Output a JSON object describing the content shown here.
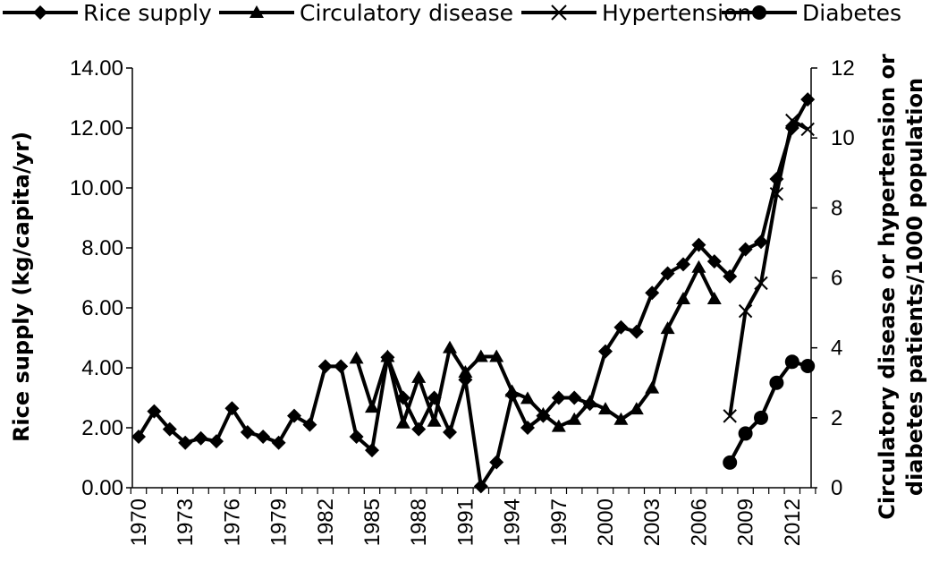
{
  "chart_data": {
    "type": "line",
    "title": "",
    "x": [
      1970,
      1971,
      1972,
      1973,
      1974,
      1975,
      1976,
      1977,
      1978,
      1979,
      1980,
      1981,
      1982,
      1983,
      1984,
      1985,
      1986,
      1987,
      1988,
      1989,
      1990,
      1991,
      1992,
      1993,
      1994,
      1995,
      1996,
      1997,
      1998,
      1999,
      2000,
      2001,
      2002,
      2003,
      2004,
      2005,
      2006,
      2007,
      2008,
      2009,
      2010,
      2011,
      2012,
      2013
    ],
    "xticks": [
      "1970",
      "1973",
      "1976",
      "1979",
      "1982",
      "1985",
      "1988",
      "1991",
      "1994",
      "1997",
      "2000",
      "2003",
      "2006",
      "2009",
      "2012"
    ],
    "ylabel_left": "Rice supply (kg/capita/yr)",
    "ylabel_right": [
      "Circulatory disease or hypertension or",
      "diabetes patients/1000 population"
    ],
    "ylim_left": [
      0,
      14
    ],
    "ylim_right": [
      0,
      12
    ],
    "yticks_left": [
      "0.00",
      "2.00",
      "4.00",
      "6.00",
      "8.00",
      "10.00",
      "12.00",
      "14.00"
    ],
    "yticks_right": [
      "0",
      "2",
      "4",
      "6",
      "8",
      "10",
      "12"
    ],
    "grid": false,
    "legend_position": "top",
    "series": [
      {
        "name": "Rice supply",
        "axis": "left",
        "marker": "diamond",
        "values": [
          1.7,
          2.55,
          1.95,
          1.5,
          1.65,
          1.55,
          2.65,
          1.85,
          1.7,
          1.5,
          2.4,
          2.1,
          4.05,
          4.05,
          1.7,
          1.25,
          4.35,
          3.0,
          1.95,
          3.0,
          1.85,
          3.6,
          0.05,
          0.85,
          3.1,
          2.0,
          2.4,
          3.0,
          3.0,
          2.8,
          4.55,
          5.35,
          5.2,
          6.5,
          7.15,
          7.45,
          8.1,
          7.55,
          7.05,
          7.95,
          8.2,
          10.3,
          12.0,
          12.95
        ]
      },
      {
        "name": "Circulatory disease",
        "axis": "right",
        "marker": "triangle",
        "values": [
          null,
          null,
          null,
          null,
          null,
          null,
          null,
          null,
          null,
          null,
          null,
          null,
          null,
          null,
          3.7,
          2.3,
          3.75,
          1.85,
          3.15,
          1.9,
          4.0,
          3.3,
          3.75,
          3.75,
          2.75,
          2.55,
          2.1,
          1.75,
          1.95,
          2.45,
          2.25,
          1.95,
          2.25,
          2.85,
          4.55,
          5.4,
          6.3,
          5.4,
          null,
          null,
          null,
          null,
          null,
          null
        ]
      },
      {
        "name": "Hypertension",
        "axis": "right",
        "marker": "x",
        "values": [
          null,
          null,
          null,
          null,
          null,
          null,
          null,
          null,
          null,
          null,
          null,
          null,
          null,
          null,
          null,
          null,
          null,
          null,
          null,
          null,
          null,
          null,
          null,
          null,
          null,
          null,
          null,
          null,
          null,
          null,
          null,
          null,
          null,
          null,
          null,
          null,
          null,
          null,
          2.05,
          5.05,
          5.85,
          8.4,
          10.5,
          10.25
        ]
      },
      {
        "name": "Diabetes",
        "axis": "right",
        "marker": "circle",
        "values": [
          null,
          null,
          null,
          null,
          null,
          null,
          null,
          null,
          null,
          null,
          null,
          null,
          null,
          null,
          null,
          null,
          null,
          null,
          null,
          null,
          null,
          null,
          null,
          null,
          null,
          null,
          null,
          null,
          null,
          null,
          null,
          null,
          null,
          null,
          null,
          null,
          null,
          null,
          0.72,
          1.55,
          2.0,
          3.0,
          3.6,
          3.48
        ]
      }
    ]
  }
}
